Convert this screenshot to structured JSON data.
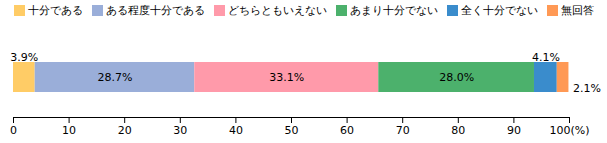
{
  "chart_data": {
    "type": "bar",
    "orientation": "horizontal",
    "stacked": true,
    "data_labels": true,
    "legend": "top",
    "grid": false,
    "categories": [
      null
    ],
    "series": [
      {
        "name": "十分である",
        "color": "#ffcc66",
        "values": [
          3.9
        ],
        "value_labels": [
          "3.9%"
        ]
      },
      {
        "name": "ある程度十分である",
        "color": "#9aaed9",
        "values": [
          28.7
        ],
        "value_labels": [
          "28.7%"
        ]
      },
      {
        "name": "どちらともいえない",
        "color": "#ff9aaa",
        "values": [
          33.1
        ],
        "value_labels": [
          "33.1%"
        ]
      },
      {
        "name": "あまり十分でない",
        "color": "#4cb16c",
        "values": [
          28.0
        ],
        "value_labels": [
          "28.0%"
        ]
      },
      {
        "name": "全く十分でない",
        "color": "#3a8ccc",
        "values": [
          4.1
        ],
        "value_labels": [
          "4.1%"
        ]
      },
      {
        "name": "無回答",
        "color": "#ff9955",
        "values": [
          2.1
        ],
        "value_labels": [
          "2.1%"
        ]
      }
    ],
    "xlim": [
      0,
      100
    ],
    "xticks": [
      0,
      10,
      20,
      30,
      40,
      50,
      60,
      70,
      80,
      90,
      {
        "value": 100,
        "label": "100(%)"
      }
    ]
  }
}
